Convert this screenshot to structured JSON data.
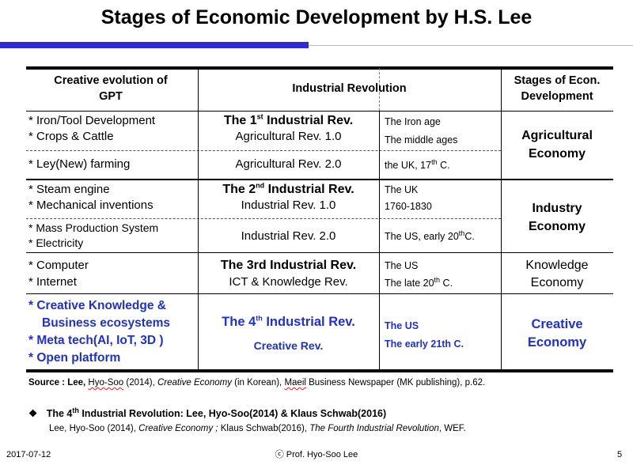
{
  "title": "Stages of Economic Development by H.S. Lee",
  "colors": {
    "accent_bar": "#2b2bd9",
    "blue_text": "#1f2fd6"
  },
  "table": {
    "headers": {
      "col1": [
        "Creative evolution of",
        "GPT"
      ],
      "col2": "Industrial Revolution",
      "col4": [
        "Stages of Econ.",
        "Development"
      ]
    },
    "rows": {
      "r1": {
        "gpt": [
          "* Iron/Tool Development",
          "* Crops & Cattle"
        ],
        "rev_pre": "The 1",
        "rev_sup": "st",
        "rev_post": " Industrial Rev.",
        "rev_sub": "Agricultural Rev. 1.0",
        "era": [
          "The Iron age",
          "The middle ages"
        ]
      },
      "r2": {
        "gpt": "* Ley(New) farming",
        "rev": "Agricultural Rev. 2.0",
        "era_pre": "the UK,  17",
        "era_sup": "th",
        "era_post": " C."
      },
      "r3": {
        "gpt": [
          "* Steam engine",
          "* Mechanical inventions"
        ],
        "rev_pre": "The 2",
        "rev_sup": "nd",
        "rev_post": "  Industrial Rev.",
        "rev_sub": "Industrial Rev. 1.0",
        "era": [
          "The UK",
          "1760-1830"
        ]
      },
      "r4": {
        "gpt": [
          "* Mass Production System",
          "* Electricity"
        ],
        "rev": "Industrial Rev. 2.0",
        "era_pre": "The US, early 20",
        "era_sup": "th",
        "era_post": "C."
      },
      "r5": {
        "gpt": [
          "* Computer",
          "* Internet"
        ],
        "rev": "The 3rd Industrial Rev.",
        "rev_sub": "ICT & Knowledge Rev.",
        "era": "The US",
        "era2_pre": "The late 20",
        "era2_sup": "th",
        "era2_post": " C."
      },
      "r6": {
        "gpt": [
          "* Creative Knowledge &",
          "Business ecosystems",
          "* Meta tech(AI, IoT, 3D )",
          "* Open platform"
        ],
        "rev_pre": "The 4",
        "rev_sup": "th",
        "rev_post": " Industrial Rev.",
        "rev_sub": "Creative Rev.",
        "era": [
          "The US",
          "The early 21th C."
        ]
      }
    },
    "stages": {
      "agri": [
        "Agricultural",
        "Economy"
      ],
      "industry": [
        "Industry",
        "Economy"
      ],
      "knowledge": [
        "Knowledge",
        "Economy"
      ],
      "creative": [
        "Creative",
        "Economy"
      ]
    }
  },
  "source": {
    "label": "Source : Lee, ",
    "author": "Hyo-Soo",
    "year": " (2014),  ",
    "work": "Creative Economy",
    "rest_a": " (in Korean), ",
    "publisher": "Maeil",
    "rest_b": " Business Newspaper (MK publishing), p.62."
  },
  "note": {
    "bullet": "❖",
    "pre": "The 4",
    "sup": "th",
    "post": " Industrial Revolution: Lee, Hyo-Soo(2014) & Klaus Schwab(2016)",
    "line2_a": "Lee, Hyo-Soo (2014),  ",
    "line2_b": "Creative Economy ;",
    "line2_c": "    Klaus Schwab(2016), ",
    "line2_d": "The Fourth Industrial Revolution",
    "line2_e": ", WEF."
  },
  "footer": {
    "date": "2017-07-12",
    "copyright": "ⓒ Prof. Hyo-Soo Lee",
    "page": "5"
  }
}
